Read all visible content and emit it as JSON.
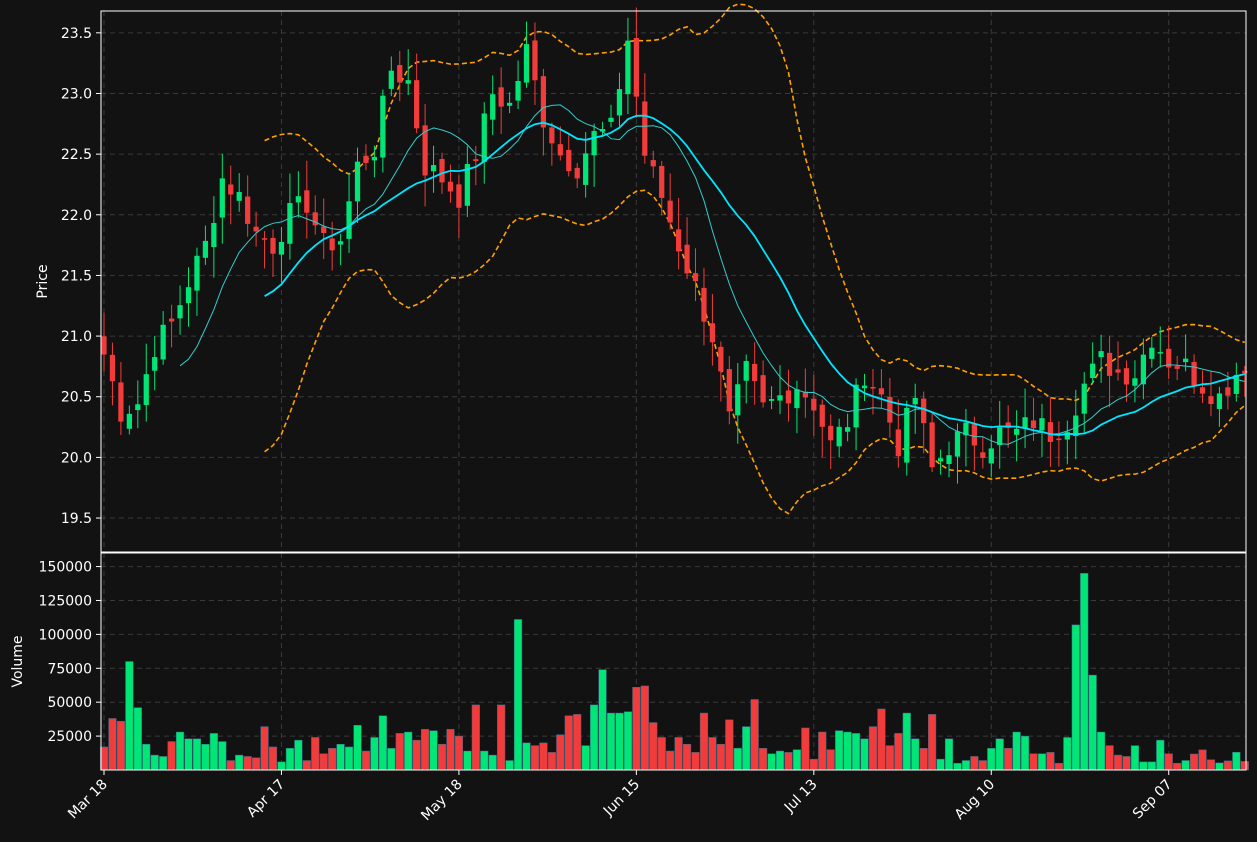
{
  "colors": {
    "background": "#121212",
    "up": "#00e676",
    "down": "#f23c3c",
    "ma_fast": "#33cccc",
    "ma_slow": "#00e5ff",
    "bands": "#ffa000",
    "axis": "#ffffff"
  },
  "chart_data": {
    "type": "candlestick",
    "x_tick_labels": [
      "Mar 18",
      "Apr 17",
      "May 18",
      "Jun 15",
      "Jul 13",
      "Aug 10",
      "Sep 07"
    ],
    "x_tick_index": [
      0,
      21,
      42,
      63,
      84,
      105,
      126
    ],
    "n_bars": 136,
    "grid": true,
    "price_panel": {
      "ylabel": "Price",
      "ylim": [
        19.22,
        23.68
      ],
      "yticks": [
        19.5,
        20.0,
        20.5,
        21.0,
        21.5,
        22.0,
        22.5,
        23.0,
        23.5
      ],
      "ytick_labels": [
        "19.5",
        "20.0",
        "20.5",
        "21.0",
        "21.5",
        "22.0",
        "22.5",
        "23.0",
        "23.5"
      ]
    },
    "volume_panel": {
      "ylabel": "Volume",
      "ylim": [
        0,
        160000
      ],
      "yticks": [
        25000,
        50000,
        75000,
        100000,
        125000,
        150000
      ],
      "ytick_labels": [
        "25000",
        "50000",
        "75000",
        "100000",
        "125000",
        "150000"
      ]
    },
    "close_anchors": [
      [
        0,
        20.85
      ],
      [
        2,
        20.38
      ],
      [
        4,
        20.45
      ],
      [
        6,
        20.92
      ],
      [
        8,
        21.1
      ],
      [
        10,
        21.45
      ],
      [
        12,
        21.75
      ],
      [
        14,
        22.3
      ],
      [
        16,
        22.15
      ],
      [
        18,
        21.85
      ],
      [
        20,
        21.75
      ],
      [
        22,
        22.0
      ],
      [
        24,
        22.1
      ],
      [
        26,
        21.75
      ],
      [
        28,
        21.8
      ],
      [
        30,
        22.4
      ],
      [
        32,
        22.55
      ],
      [
        34,
        23.2
      ],
      [
        36,
        23.1
      ],
      [
        38,
        22.4
      ],
      [
        40,
        22.3
      ],
      [
        42,
        22.15
      ],
      [
        44,
        22.5
      ],
      [
        46,
        23.0
      ],
      [
        48,
        22.9
      ],
      [
        50,
        23.35
      ],
      [
        52,
        22.8
      ],
      [
        54,
        22.5
      ],
      [
        56,
        22.4
      ],
      [
        58,
        22.65
      ],
      [
        60,
        22.7
      ],
      [
        62,
        23.45
      ],
      [
        64,
        22.5
      ],
      [
        66,
        22.15
      ],
      [
        68,
        21.75
      ],
      [
        70,
        21.4
      ],
      [
        72,
        21.0
      ],
      [
        74,
        20.3
      ],
      [
        76,
        20.7
      ],
      [
        78,
        20.4
      ],
      [
        80,
        20.5
      ],
      [
        82,
        20.6
      ],
      [
        84,
        20.45
      ],
      [
        86,
        20.1
      ],
      [
        88,
        20.3
      ],
      [
        90,
        20.7
      ],
      [
        92,
        20.5
      ],
      [
        94,
        20.1
      ],
      [
        96,
        20.5
      ],
      [
        98,
        19.9
      ],
      [
        100,
        20.1
      ],
      [
        102,
        20.2
      ],
      [
        104,
        20.1
      ],
      [
        106,
        20.2
      ],
      [
        108,
        20.2
      ],
      [
        110,
        20.3
      ],
      [
        112,
        20.2
      ],
      [
        114,
        20.3
      ],
      [
        116,
        20.6
      ],
      [
        118,
        20.8
      ],
      [
        120,
        20.7
      ],
      [
        122,
        20.7
      ],
      [
        124,
        21.0
      ],
      [
        126,
        20.8
      ],
      [
        128,
        20.75
      ],
      [
        130,
        20.6
      ],
      [
        132,
        20.5
      ],
      [
        134,
        20.7
      ],
      [
        135,
        20.78
      ]
    ],
    "volume_anchors": [
      [
        0,
        17000
      ],
      [
        1,
        38000
      ],
      [
        2,
        36000
      ],
      [
        3,
        80000
      ],
      [
        4,
        46000
      ],
      [
        5,
        19000
      ],
      [
        6,
        11000
      ],
      [
        7,
        10000
      ],
      [
        8,
        21000
      ],
      [
        9,
        28000
      ],
      [
        10,
        23000
      ],
      [
        11,
        23000
      ],
      [
        12,
        19000
      ],
      [
        13,
        27000
      ],
      [
        14,
        21000
      ],
      [
        15,
        7000
      ],
      [
        16,
        11000
      ],
      [
        17,
        10000
      ],
      [
        18,
        9000
      ],
      [
        19,
        32000
      ],
      [
        20,
        17000
      ],
      [
        21,
        6000
      ],
      [
        22,
        16000
      ],
      [
        23,
        22000
      ],
      [
        24,
        7000
      ],
      [
        25,
        24000
      ],
      [
        26,
        12000
      ],
      [
        27,
        16000
      ],
      [
        28,
        19000
      ],
      [
        29,
        17000
      ],
      [
        30,
        33000
      ],
      [
        31,
        14000
      ],
      [
        32,
        24000
      ],
      [
        33,
        40000
      ],
      [
        34,
        16000
      ],
      [
        35,
        27000
      ],
      [
        36,
        28000
      ],
      [
        37,
        22000
      ],
      [
        38,
        30000
      ],
      [
        39,
        29000
      ],
      [
        40,
        19000
      ],
      [
        41,
        30000
      ],
      [
        42,
        25000
      ],
      [
        43,
        14000
      ],
      [
        44,
        48000
      ],
      [
        45,
        14000
      ],
      [
        46,
        11000
      ],
      [
        47,
        48000
      ],
      [
        48,
        7000
      ],
      [
        49,
        111000
      ],
      [
        50,
        20000
      ],
      [
        51,
        18000
      ],
      [
        52,
        20000
      ],
      [
        53,
        13000
      ],
      [
        54,
        26000
      ],
      [
        55,
        40000
      ],
      [
        56,
        41000
      ],
      [
        57,
        18000
      ],
      [
        58,
        48000
      ],
      [
        59,
        74000
      ],
      [
        60,
        42000
      ],
      [
        61,
        42000
      ],
      [
        62,
        43000
      ],
      [
        63,
        61000
      ],
      [
        64,
        62000
      ],
      [
        65,
        35000
      ],
      [
        66,
        24000
      ],
      [
        67,
        14000
      ],
      [
        68,
        24000
      ],
      [
        69,
        19000
      ],
      [
        70,
        13000
      ],
      [
        71,
        42000
      ],
      [
        72,
        24000
      ],
      [
        73,
        19000
      ],
      [
        74,
        37000
      ],
      [
        75,
        16000
      ],
      [
        76,
        32000
      ],
      [
        77,
        52000
      ],
      [
        78,
        16000
      ],
      [
        79,
        12000
      ],
      [
        80,
        14000
      ],
      [
        81,
        13000
      ],
      [
        82,
        15000
      ],
      [
        83,
        31000
      ],
      [
        84,
        8000
      ],
      [
        85,
        28000
      ],
      [
        86,
        15000
      ],
      [
        87,
        29000
      ],
      [
        88,
        28000
      ],
      [
        89,
        27000
      ],
      [
        90,
        23000
      ],
      [
        91,
        32000
      ],
      [
        92,
        45000
      ],
      [
        93,
        18000
      ],
      [
        94,
        27000
      ],
      [
        95,
        42000
      ],
      [
        96,
        23000
      ],
      [
        97,
        16000
      ],
      [
        98,
        41000
      ],
      [
        99,
        8000
      ],
      [
        100,
        23000
      ],
      [
        101,
        5000
      ],
      [
        102,
        7000
      ],
      [
        103,
        10000
      ],
      [
        104,
        7000
      ],
      [
        105,
        16000
      ],
      [
        106,
        23000
      ],
      [
        107,
        16000
      ],
      [
        108,
        28000
      ],
      [
        109,
        25000
      ],
      [
        110,
        12000
      ],
      [
        111,
        12000
      ],
      [
        112,
        13000
      ],
      [
        113,
        5000
      ],
      [
        114,
        24000
      ],
      [
        115,
        107000
      ],
      [
        116,
        145000
      ],
      [
        117,
        70000
      ],
      [
        118,
        28000
      ],
      [
        119,
        18000
      ],
      [
        120,
        11000
      ],
      [
        121,
        10000
      ],
      [
        122,
        18000
      ],
      [
        123,
        6000
      ],
      [
        124,
        6000
      ],
      [
        125,
        22000
      ],
      [
        126,
        12000
      ],
      [
        127,
        5000
      ],
      [
        128,
        7000
      ]
    ],
    "volume_spikes": [
      [
        3,
        80000
      ],
      [
        49,
        111000
      ],
      [
        59,
        74000
      ],
      [
        63,
        61000
      ],
      [
        64,
        62000
      ],
      [
        115,
        107000
      ],
      [
        116,
        145000
      ],
      [
        117,
        70000
      ]
    ]
  }
}
